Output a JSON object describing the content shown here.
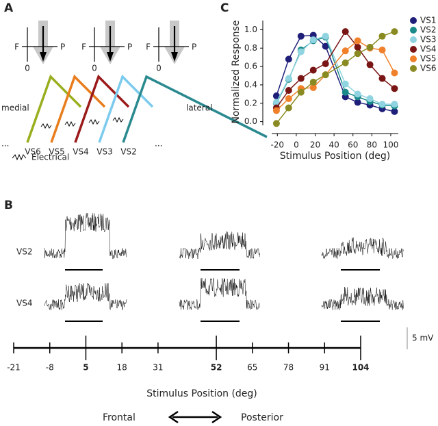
{
  "panel_labels": {
    "a": "A",
    "b": "B",
    "c": "C"
  },
  "diagram": {
    "crosses": [
      {
        "f": "F",
        "p": "P",
        "zero": "0"
      },
      {
        "f": "F",
        "p": "P",
        "zero": "0"
      },
      {
        "f": "F",
        "p": "P",
        "zero": "0"
      }
    ],
    "medial": "medial",
    "lateral": "lateral",
    "ellipsis_left": "...",
    "ellipsis_right": "...",
    "neurons": [
      {
        "label": "VS6",
        "color": "#9aae1f"
      },
      {
        "label": "VS5",
        "color": "#e87d1e"
      },
      {
        "label": "VS4",
        "color": "#9b1b1b"
      },
      {
        "label": "VS3",
        "color": "#7ccbee"
      },
      {
        "label": "VS2",
        "color": "#2a8a8f"
      }
    ],
    "legend": "Electrical"
  },
  "traces": {
    "rows": [
      "VS2",
      "VS4"
    ],
    "scale": "5 mV",
    "axis": {
      "ticks": [
        -21,
        -8,
        5,
        18,
        31,
        52,
        65,
        78,
        91,
        104
      ],
      "major": [
        5,
        52,
        104
      ]
    },
    "xlabel": "Stimulus Position (deg)",
    "frontal": "Frontal",
    "posterior": "Posterior"
  },
  "chart_data": {
    "type": "line",
    "xlabel": "Stimulus Position (deg)",
    "ylabel": "Normalized Response",
    "x": [
      -21,
      -8,
      5,
      18,
      31,
      52,
      65,
      78,
      91,
      104
    ],
    "series": [
      {
        "name": "VS1",
        "color": "#1f1f7a",
        "values": [
          0.28,
          0.68,
          0.93,
          0.94,
          0.82,
          0.27,
          0.21,
          0.18,
          0.14,
          0.11
        ]
      },
      {
        "name": "VS2",
        "color": "#1b8a8a",
        "values": [
          0.2,
          0.46,
          0.78,
          0.88,
          0.92,
          0.32,
          0.27,
          0.22,
          0.18,
          0.17
        ]
      },
      {
        "name": "VS3",
        "color": "#8fd4e0",
        "values": [
          0.21,
          0.47,
          0.76,
          0.89,
          0.93,
          0.41,
          0.3,
          0.25,
          0.19,
          0.19
        ]
      },
      {
        "name": "VS4",
        "color": "#7a1515",
        "values": [
          0.15,
          0.34,
          0.47,
          0.56,
          0.63,
          0.98,
          0.81,
          0.62,
          0.47,
          0.36
        ]
      },
      {
        "name": "VS5",
        "color": "#f0802a",
        "values": [
          0.12,
          0.25,
          0.36,
          0.37,
          0.51,
          0.77,
          0.88,
          0.8,
          0.78,
          0.53
        ]
      },
      {
        "name": "VS6",
        "color": "#8a8a22",
        "values": [
          -0.02,
          0.15,
          0.32,
          0.43,
          0.51,
          0.64,
          0.74,
          0.81,
          0.93,
          0.98
        ]
      }
    ],
    "xlim": [
      -26,
      108
    ],
    "ylim": [
      -0.07,
      1.1
    ],
    "xticks": [
      -20,
      0,
      20,
      40,
      60,
      80,
      100
    ],
    "yticks": [
      {
        "value": 0,
        "label": "0.0"
      },
      {
        "value": 0.2,
        "label": "0.2"
      },
      {
        "value": 0.4,
        "label": "0.4"
      },
      {
        "value": 0.6,
        "label": "0.6"
      },
      {
        "value": 0.8,
        "label": "0.8"
      },
      {
        "value": 1,
        "label": "1.0"
      }
    ]
  }
}
